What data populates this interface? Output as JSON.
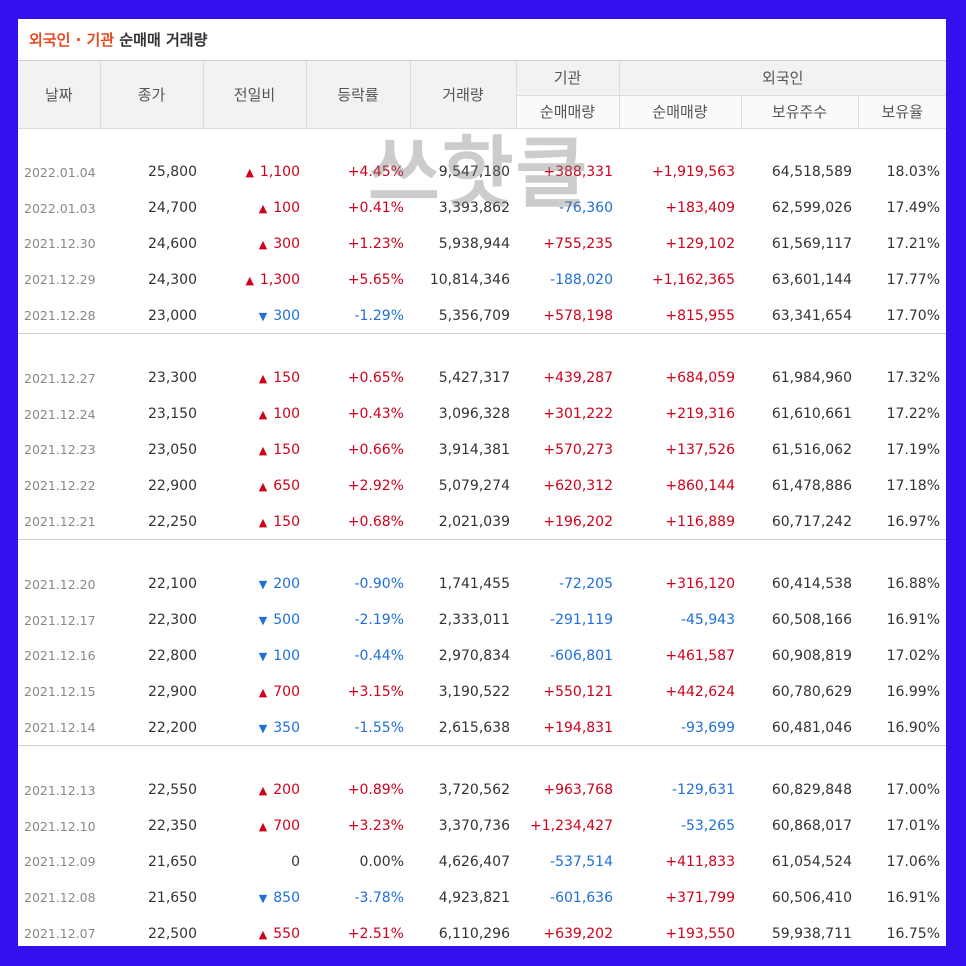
{
  "title": {
    "accent": "외국인 · 기관",
    "rest": " 순매매 거래량"
  },
  "watermark": "쓰핫클",
  "headers": {
    "date": "날짜",
    "close": "종가",
    "change": "전일비",
    "rate": "등락률",
    "volume": "거래량",
    "institution": "기관",
    "foreign": "외국인",
    "inst_net": "순매매량",
    "foreign_net": "순매매량",
    "holdings": "보유주수",
    "ratio": "보유율"
  },
  "colors": {
    "up": "#d0021b",
    "down": "#1e6fd9",
    "accent": "#e8491d",
    "frame": "#3311ee"
  },
  "groups": [
    [
      {
        "date": "2022.01.04",
        "close": "25,800",
        "dir": "up",
        "change": "1,100",
        "rate": "+4.45%",
        "volume": "9,547,180",
        "inst": "+388,331",
        "foreign": "+1,919,563",
        "holdings": "64,518,589",
        "ratio": "18.03%"
      },
      {
        "date": "2022.01.03",
        "close": "24,700",
        "dir": "up",
        "change": "100",
        "rate": "+0.41%",
        "volume": "3,393,862",
        "inst": "-76,360",
        "foreign": "+183,409",
        "holdings": "62,599,026",
        "ratio": "17.49%"
      },
      {
        "date": "2021.12.30",
        "close": "24,600",
        "dir": "up",
        "change": "300",
        "rate": "+1.23%",
        "volume": "5,938,944",
        "inst": "+755,235",
        "foreign": "+129,102",
        "holdings": "61,569,117",
        "ratio": "17.21%"
      },
      {
        "date": "2021.12.29",
        "close": "24,300",
        "dir": "up",
        "change": "1,300",
        "rate": "+5.65%",
        "volume": "10,814,346",
        "inst": "-188,020",
        "foreign": "+1,162,365",
        "holdings": "63,601,144",
        "ratio": "17.77%"
      },
      {
        "date": "2021.12.28",
        "close": "23,000",
        "dir": "down",
        "change": "300",
        "rate": "-1.29%",
        "volume": "5,356,709",
        "inst": "+578,198",
        "foreign": "+815,955",
        "holdings": "63,341,654",
        "ratio": "17.70%"
      }
    ],
    [
      {
        "date": "2021.12.27",
        "close": "23,300",
        "dir": "up",
        "change": "150",
        "rate": "+0.65%",
        "volume": "5,427,317",
        "inst": "+439,287",
        "foreign": "+684,059",
        "holdings": "61,984,960",
        "ratio": "17.32%"
      },
      {
        "date": "2021.12.24",
        "close": "23,150",
        "dir": "up",
        "change": "100",
        "rate": "+0.43%",
        "volume": "3,096,328",
        "inst": "+301,222",
        "foreign": "+219,316",
        "holdings": "61,610,661",
        "ratio": "17.22%"
      },
      {
        "date": "2021.12.23",
        "close": "23,050",
        "dir": "up",
        "change": "150",
        "rate": "+0.66%",
        "volume": "3,914,381",
        "inst": "+570,273",
        "foreign": "+137,526",
        "holdings": "61,516,062",
        "ratio": "17.19%"
      },
      {
        "date": "2021.12.22",
        "close": "22,900",
        "dir": "up",
        "change": "650",
        "rate": "+2.92%",
        "volume": "5,079,274",
        "inst": "+620,312",
        "foreign": "+860,144",
        "holdings": "61,478,886",
        "ratio": "17.18%"
      },
      {
        "date": "2021.12.21",
        "close": "22,250",
        "dir": "up",
        "change": "150",
        "rate": "+0.68%",
        "volume": "2,021,039",
        "inst": "+196,202",
        "foreign": "+116,889",
        "holdings": "60,717,242",
        "ratio": "16.97%"
      }
    ],
    [
      {
        "date": "2021.12.20",
        "close": "22,100",
        "dir": "down",
        "change": "200",
        "rate": "-0.90%",
        "volume": "1,741,455",
        "inst": "-72,205",
        "foreign": "+316,120",
        "holdings": "60,414,538",
        "ratio": "16.88%"
      },
      {
        "date": "2021.12.17",
        "close": "22,300",
        "dir": "down",
        "change": "500",
        "rate": "-2.19%",
        "volume": "2,333,011",
        "inst": "-291,119",
        "foreign": "-45,943",
        "holdings": "60,508,166",
        "ratio": "16.91%"
      },
      {
        "date": "2021.12.16",
        "close": "22,800",
        "dir": "down",
        "change": "100",
        "rate": "-0.44%",
        "volume": "2,970,834",
        "inst": "-606,801",
        "foreign": "+461,587",
        "holdings": "60,908,819",
        "ratio": "17.02%"
      },
      {
        "date": "2021.12.15",
        "close": "22,900",
        "dir": "up",
        "change": "700",
        "rate": "+3.15%",
        "volume": "3,190,522",
        "inst": "+550,121",
        "foreign": "+442,624",
        "holdings": "60,780,629",
        "ratio": "16.99%"
      },
      {
        "date": "2021.12.14",
        "close": "22,200",
        "dir": "down",
        "change": "350",
        "rate": "-1.55%",
        "volume": "2,615,638",
        "inst": "+194,831",
        "foreign": "-93,699",
        "holdings": "60,481,046",
        "ratio": "16.90%"
      }
    ],
    [
      {
        "date": "2021.12.13",
        "close": "22,550",
        "dir": "up",
        "change": "200",
        "rate": "+0.89%",
        "volume": "3,720,562",
        "inst": "+963,768",
        "foreign": "-129,631",
        "holdings": "60,829,848",
        "ratio": "17.00%"
      },
      {
        "date": "2021.12.10",
        "close": "22,350",
        "dir": "up",
        "change": "700",
        "rate": "+3.23%",
        "volume": "3,370,736",
        "inst": "+1,234,427",
        "foreign": "-53,265",
        "holdings": "60,868,017",
        "ratio": "17.01%"
      },
      {
        "date": "2021.12.09",
        "close": "21,650",
        "dir": "none",
        "change": "0",
        "rate": "0.00%",
        "volume": "4,626,407",
        "inst": "-537,514",
        "foreign": "+411,833",
        "holdings": "61,054,524",
        "ratio": "17.06%"
      },
      {
        "date": "2021.12.08",
        "close": "21,650",
        "dir": "down",
        "change": "850",
        "rate": "-3.78%",
        "volume": "4,923,821",
        "inst": "-601,636",
        "foreign": "+371,799",
        "holdings": "60,506,410",
        "ratio": "16.91%"
      },
      {
        "date": "2021.12.07",
        "close": "22,500",
        "dir": "up",
        "change": "550",
        "rate": "+2.51%",
        "volume": "6,110,296",
        "inst": "+639,202",
        "foreign": "+193,550",
        "holdings": "59,938,711",
        "ratio": "16.75%"
      }
    ]
  ]
}
